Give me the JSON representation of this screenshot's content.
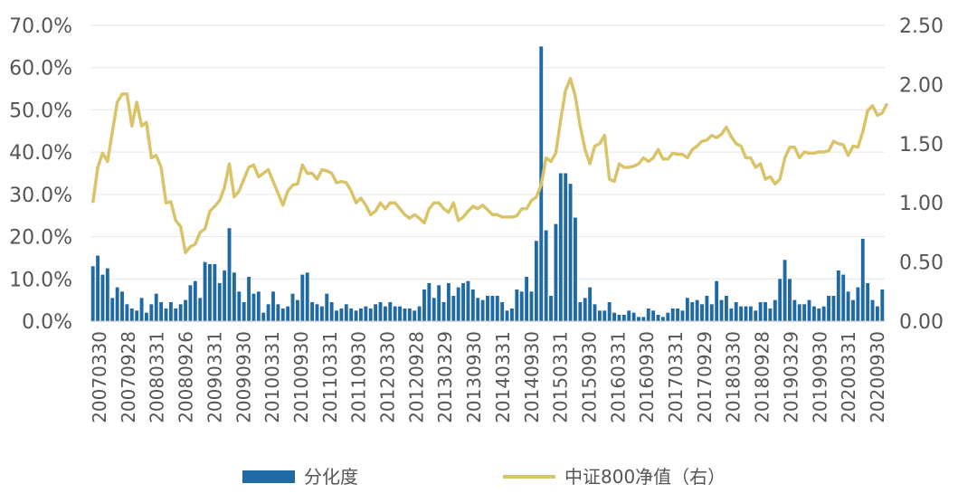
{
  "chart_data": {
    "type": "bar+line",
    "title": "",
    "xlabel": "",
    "ylabel_left": "",
    "ylabel_right": "",
    "ylim_left": [
      0,
      70
    ],
    "ylim_right": [
      0,
      2.5
    ],
    "left_ticks": [
      "0.0%",
      "10.0%",
      "20.0%",
      "30.0%",
      "40.0%",
      "50.0%",
      "60.0%",
      "70.0%"
    ],
    "right_ticks": [
      "0.00",
      "0.50",
      "1.00",
      "1.50",
      "2.00",
      "2.50"
    ],
    "x_tick_labels": [
      "20070330",
      "20070928",
      "20080331",
      "20080926",
      "20090331",
      "20090930",
      "20100331",
      "20100930",
      "20110331",
      "20110930",
      "20120330",
      "20120928",
      "20130329",
      "20130930",
      "20140331",
      "20140930",
      "20150331",
      "20150930",
      "20160331",
      "20160930",
      "20170331",
      "20170929",
      "20180330",
      "20180928",
      "20190329",
      "20190930",
      "20200331",
      "20200930"
    ],
    "grid": "horizontal",
    "legend_position": "bottom",
    "colors": {
      "bars": "#1f6aa5",
      "line": "#d9c46a",
      "axis_text": "#555555",
      "grid": "#e6e6e6"
    },
    "series": [
      {
        "name": "分化度",
        "type": "bar",
        "axis": "left",
        "values": [
          13,
          15.5,
          11,
          12.5,
          5.5,
          8,
          7,
          4,
          3,
          2.5,
          5.5,
          2,
          4,
          6.5,
          4.5,
          3,
          4.5,
          3,
          4,
          5,
          8.5,
          9.5,
          5.5,
          14,
          13.5,
          13.5,
          9,
          12,
          22,
          11.5,
          7,
          4.5,
          10.5,
          6.5,
          7,
          2,
          4,
          7,
          4,
          3,
          3.5,
          6.5,
          5,
          11,
          11.5,
          4.5,
          4,
          3.5,
          6.5,
          4.5,
          2.5,
          3,
          4,
          3,
          2.5,
          3,
          3.5,
          3,
          4,
          4.5,
          3.5,
          4.5,
          3.5,
          3.5,
          3,
          3,
          2.5,
          3.5,
          7.5,
          9,
          5.5,
          8.5,
          4.5,
          9,
          6,
          8,
          9,
          9.5,
          7.5,
          5.5,
          5,
          6,
          6,
          6,
          4.5,
          2.5,
          3,
          7.5,
          7,
          10.5,
          7,
          19,
          65,
          21.5,
          6,
          23,
          35,
          35,
          32.5,
          24.5,
          4.5,
          5.5,
          8,
          4,
          2.5,
          2.5,
          4.5,
          2,
          1.5,
          1.5,
          2.5,
          2,
          1,
          1,
          3,
          2.5,
          1.5,
          1,
          2,
          3,
          3,
          2.5,
          5.5,
          4.5,
          5,
          4,
          6,
          4,
          9.5,
          5,
          6,
          3,
          4.5,
          3.5,
          3.5,
          3.5,
          2.5,
          4.5,
          4.5,
          3,
          5,
          10,
          14.5,
          10,
          5,
          4,
          4,
          5,
          3.5,
          3,
          3.5,
          6,
          6,
          12,
          11,
          7,
          5,
          8,
          19.5,
          9,
          5,
          3.5,
          7.5
        ]
      },
      {
        "name": "中证800净值（右）",
        "type": "line",
        "axis": "right",
        "values": [
          1.0,
          1.3,
          1.42,
          1.35,
          1.6,
          1.85,
          1.92,
          1.92,
          1.65,
          1.85,
          1.65,
          1.68,
          1.38,
          1.4,
          1.3,
          1.0,
          1.01,
          0.85,
          0.8,
          0.58,
          0.63,
          0.65,
          0.75,
          0.78,
          0.93,
          0.97,
          1.02,
          1.13,
          1.33,
          1.05,
          1.1,
          1.2,
          1.3,
          1.32,
          1.22,
          1.25,
          1.28,
          1.18,
          1.08,
          0.98,
          1.1,
          1.15,
          1.16,
          1.32,
          1.25,
          1.25,
          1.2,
          1.28,
          1.27,
          1.25,
          1.17,
          1.18,
          1.17,
          1.1,
          1.0,
          1.04,
          0.98,
          0.9,
          0.93,
          1.0,
          0.95,
          1.0,
          1.0,
          0.95,
          0.9,
          0.87,
          0.9,
          0.87,
          0.83,
          0.95,
          1.0,
          1.0,
          0.95,
          0.92,
          1.0,
          0.85,
          0.88,
          0.93,
          0.97,
          0.95,
          0.98,
          0.94,
          0.9,
          0.9,
          0.88,
          0.88,
          0.88,
          0.89,
          0.95,
          0.95,
          1.02,
          1.05,
          1.15,
          1.38,
          1.35,
          1.42,
          1.7,
          1.95,
          2.05,
          1.9,
          1.65,
          1.45,
          1.33,
          1.48,
          1.5,
          1.57,
          1.2,
          1.18,
          1.33,
          1.3,
          1.3,
          1.31,
          1.33,
          1.38,
          1.35,
          1.38,
          1.45,
          1.37,
          1.37,
          1.42,
          1.41,
          1.41,
          1.38,
          1.45,
          1.48,
          1.52,
          1.53,
          1.57,
          1.55,
          1.58,
          1.64,
          1.56,
          1.5,
          1.48,
          1.38,
          1.38,
          1.3,
          1.33,
          1.2,
          1.22,
          1.16,
          1.2,
          1.38,
          1.47,
          1.47,
          1.38,
          1.43,
          1.42,
          1.42,
          1.43,
          1.43,
          1.44,
          1.52,
          1.5,
          1.49,
          1.4,
          1.48,
          1.47,
          1.6,
          1.78,
          1.82,
          1.74,
          1.76,
          1.84
        ]
      }
    ]
  }
}
